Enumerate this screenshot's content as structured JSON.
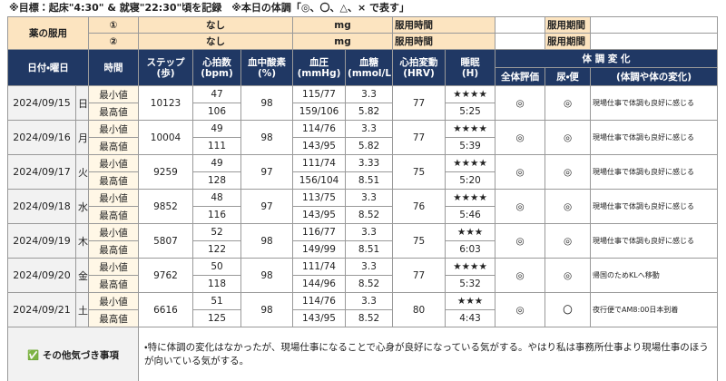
{
  "header": {
    "note": "※目標：起床\"4:30\" & 就寝\"22:30\"頃を記録　※本日の体調「◎、〇、△、× で表す」"
  },
  "medication": {
    "label": "薬の服用",
    "rows": [
      {
        "no": "①",
        "name": "なし",
        "unit": "mg",
        "time_label": "服用時間",
        "period_label": "服用期間"
      },
      {
        "no": "②",
        "name": "なし",
        "unit": "mg",
        "time_label": "服用時間",
        "period_label": "服用期間"
      }
    ]
  },
  "columns": {
    "date": "日付・曜日",
    "time": "時間",
    "steps": [
      "ステップ",
      "(歩)"
    ],
    "hr": [
      "心拍数",
      "(bpm)"
    ],
    "spo2": [
      "血中酸素",
      "(%)"
    ],
    "bp": [
      "血圧",
      "(mmHg)"
    ],
    "glucose": [
      "血糖",
      "(mmol/L)"
    ],
    "hrv": [
      "心拍変動",
      "(HRV)"
    ],
    "sleep": [
      "睡眠",
      "(H)"
    ],
    "condition": "体 調 変 化",
    "overall": "全体評価",
    "urine": "尿・便",
    "change": "(体調や体の変化)"
  },
  "labels": {
    "min": "最小値",
    "max": "最高値"
  },
  "table": {
    "rows": [
      {
        "date": "2024/09/15",
        "day": "日",
        "steps": "10123",
        "hr_min": "47",
        "hr_max": "106",
        "spo2": "98",
        "bp_min": "115/77",
        "bp_max": "159/106",
        "glu_min": "3.3",
        "glu_max": "5.82",
        "hrv": "77",
        "stars": "★★★★",
        "sleep": "5:25",
        "overall": "◎",
        "urine": "◎",
        "note": "現場仕事で体調も良好に感じる"
      },
      {
        "date": "2024/09/16",
        "day": "月",
        "steps": "10004",
        "hr_min": "49",
        "hr_max": "111",
        "spo2": "98",
        "bp_min": "114/76",
        "bp_max": "143/95",
        "glu_min": "3.3",
        "glu_max": "5.82",
        "hrv": "77",
        "stars": "★★★★",
        "sleep": "5:39",
        "overall": "◎",
        "urine": "◎",
        "note": "現場仕事で体調も良好に感じる"
      },
      {
        "date": "2024/09/17",
        "day": "火",
        "steps": "9259",
        "hr_min": "49",
        "hr_max": "128",
        "spo2": "97",
        "bp_min": "111/74",
        "bp_max": "156/104",
        "glu_min": "3.33",
        "glu_max": "8.51",
        "hrv": "75",
        "stars": "★★★★",
        "sleep": "5:20",
        "overall": "◎",
        "urine": "◎",
        "note": "現場仕事で体調も良好に感じる"
      },
      {
        "date": "2024/09/18",
        "day": "水",
        "steps": "9852",
        "hr_min": "48",
        "hr_max": "116",
        "spo2": "97",
        "bp_min": "113/75",
        "bp_max": "143/95",
        "glu_min": "3.3",
        "glu_max": "8.52",
        "hrv": "76",
        "stars": "★★★★",
        "sleep": "5:46",
        "overall": "◎",
        "urine": "◎",
        "note": "現場仕事で体調も良好に感じる"
      },
      {
        "date": "2024/09/19",
        "day": "木",
        "steps": "5807",
        "hr_min": "52",
        "hr_max": "122",
        "spo2": "98",
        "bp_min": "116/77",
        "bp_max": "149/99",
        "glu_min": "3.3",
        "glu_max": "8.51",
        "hrv": "75",
        "stars": "★★★",
        "sleep": "6:03",
        "overall": "◎",
        "urine": "◎",
        "note": "現場仕事で体調も良好に感じる"
      },
      {
        "date": "2024/09/20",
        "day": "金",
        "steps": "9762",
        "hr_min": "50",
        "hr_max": "118",
        "spo2": "98",
        "bp_min": "111/74",
        "bp_max": "144/96",
        "glu_min": "3.3",
        "glu_max": "8.52",
        "hrv": "77",
        "stars": "★★★★",
        "sleep": "5:32",
        "overall": "◎",
        "urine": "◎",
        "note": "帰国のためKLへ移動"
      },
      {
        "date": "2024/09/21",
        "day": "土",
        "steps": "6616",
        "hr_min": "51",
        "hr_max": "125",
        "spo2": "98",
        "bp_min": "114/76",
        "bp_max": "143/95",
        "glu_min": "3.3",
        "glu_max": "8.52",
        "hrv": "80",
        "stars": "★★★",
        "sleep": "4:43",
        "overall": "◎",
        "urine": "〇",
        "note": "夜行便でAM8:00日本到着"
      }
    ]
  },
  "footer": {
    "label": "✅ その他気づき事項",
    "text": "・特に体調の変化はなかったが、現場仕事になることで心身が良好になっている気がする。やはり私は事務所仕事より現場仕事のほうが向いている気がする。"
  }
}
